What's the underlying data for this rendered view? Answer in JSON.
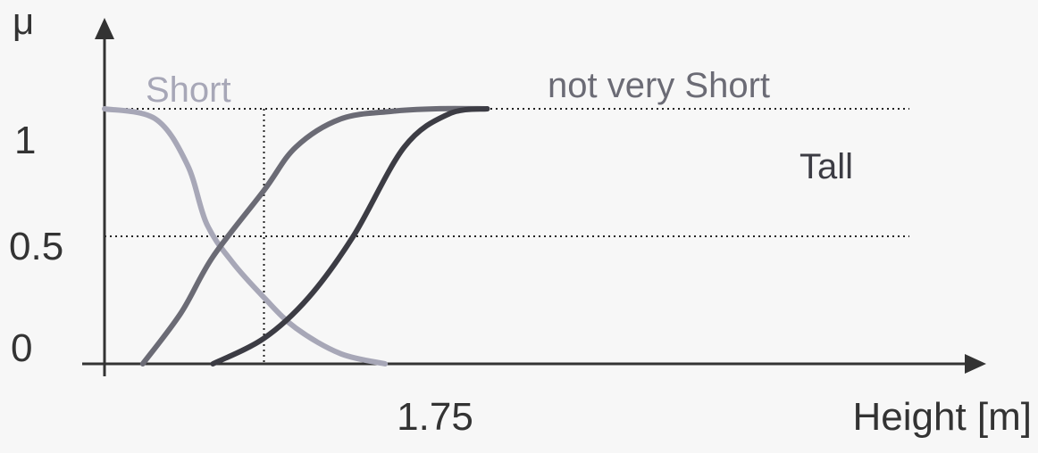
{
  "chart_data": {
    "type": "line",
    "ylabel": "μ",
    "xlabel": "Height [m]",
    "y_ticks": [
      "0",
      "0.5",
      "1"
    ],
    "x_ticks": [
      "1.75"
    ],
    "reference_lines": {
      "x": 1.75,
      "y": [
        0.5,
        1
      ]
    },
    "series": [
      {
        "name": "Short",
        "color": "#a7a7b7",
        "x": [
          1.5,
          1.58,
          1.63,
          1.66,
          1.7,
          1.75,
          1.8,
          1.87,
          1.94
        ],
        "y": [
          1.0,
          0.96,
          0.78,
          0.55,
          0.4,
          0.26,
          0.14,
          0.04,
          0.0
        ]
      },
      {
        "name": "not very Short",
        "color": "#6b6b75",
        "x": [
          1.56,
          1.62,
          1.67,
          1.75,
          1.8,
          1.87,
          1.95,
          2.02,
          2.1
        ],
        "y": [
          0.0,
          0.2,
          0.42,
          0.68,
          0.85,
          0.96,
          0.99,
          1.0,
          1.0
        ]
      },
      {
        "name": "Tall",
        "color": "#3c3c44",
        "x": [
          1.67,
          1.75,
          1.82,
          1.89,
          1.97,
          2.04,
          2.1
        ],
        "y": [
          0.0,
          0.1,
          0.26,
          0.5,
          0.85,
          0.98,
          1.0
        ]
      }
    ]
  }
}
